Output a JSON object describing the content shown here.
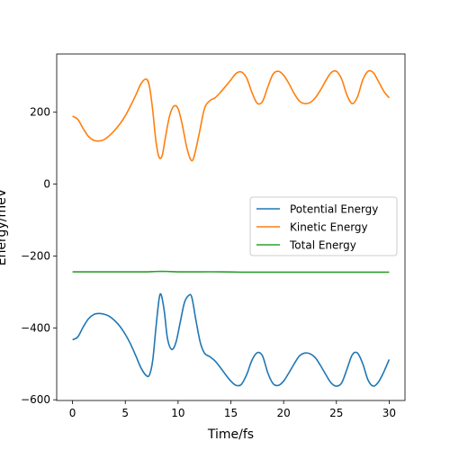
{
  "chart_data": {
    "type": "line",
    "title": "",
    "xlabel": "Time/fs",
    "ylabel": "Energy/meV",
    "xlim": [
      -1.5,
      31.5
    ],
    "ylim": [
      -602,
      362
    ],
    "xticks": [
      0,
      5,
      10,
      15,
      20,
      25,
      30
    ],
    "yticks": [
      -600,
      -400,
      -200,
      0,
      200
    ],
    "grid": false,
    "legend_position": "center-right",
    "series": [
      {
        "name": "Potential Energy",
        "color": "#1f77b4",
        "points": [
          [
            0,
            -433
          ],
          [
            0.5,
            -425
          ],
          [
            1,
            -398
          ],
          [
            1.5,
            -375
          ],
          [
            2,
            -363
          ],
          [
            2.5,
            -360
          ],
          [
            3,
            -362
          ],
          [
            3.5,
            -368
          ],
          [
            4,
            -380
          ],
          [
            4.5,
            -396
          ],
          [
            5,
            -418
          ],
          [
            5.5,
            -445
          ],
          [
            6,
            -478
          ],
          [
            6.5,
            -512
          ],
          [
            7,
            -533
          ],
          [
            7.3,
            -530
          ],
          [
            7.6,
            -490
          ],
          [
            7.9,
            -400
          ],
          [
            8.2,
            -320
          ],
          [
            8.4,
            -308
          ],
          [
            8.7,
            -355
          ],
          [
            9,
            -430
          ],
          [
            9.4,
            -460
          ],
          [
            9.8,
            -440
          ],
          [
            10.2,
            -385
          ],
          [
            10.6,
            -330
          ],
          [
            11,
            -310
          ],
          [
            11.3,
            -315
          ],
          [
            11.7,
            -380
          ],
          [
            12.1,
            -440
          ],
          [
            12.5,
            -470
          ],
          [
            13,
            -480
          ],
          [
            13.5,
            -492
          ],
          [
            14,
            -510
          ],
          [
            14.5,
            -530
          ],
          [
            15,
            -548
          ],
          [
            15.5,
            -560
          ],
          [
            16,
            -557
          ],
          [
            16.5,
            -530
          ],
          [
            17,
            -490
          ],
          [
            17.5,
            -469
          ],
          [
            18,
            -478
          ],
          [
            18.5,
            -525
          ],
          [
            19,
            -555
          ],
          [
            19.5,
            -560
          ],
          [
            20,
            -548
          ],
          [
            20.5,
            -525
          ],
          [
            21,
            -500
          ],
          [
            21.5,
            -478
          ],
          [
            22,
            -470
          ],
          [
            22.5,
            -472
          ],
          [
            23,
            -483
          ],
          [
            23.5,
            -505
          ],
          [
            24,
            -530
          ],
          [
            24.5,
            -553
          ],
          [
            25,
            -562
          ],
          [
            25.5,
            -553
          ],
          [
            26,
            -515
          ],
          [
            26.5,
            -475
          ],
          [
            27,
            -470
          ],
          [
            27.5,
            -500
          ],
          [
            28,
            -545
          ],
          [
            28.5,
            -562
          ],
          [
            29,
            -550
          ],
          [
            29.5,
            -522
          ],
          [
            30,
            -488
          ]
        ]
      },
      {
        "name": "Kinetic Energy",
        "color": "#ff7f0e",
        "points": [
          [
            0,
            189
          ],
          [
            0.5,
            180
          ],
          [
            1,
            155
          ],
          [
            1.5,
            133
          ],
          [
            2,
            122
          ],
          [
            2.5,
            120
          ],
          [
            3,
            124
          ],
          [
            3.5,
            135
          ],
          [
            4,
            150
          ],
          [
            4.5,
            168
          ],
          [
            5,
            190
          ],
          [
            5.5,
            218
          ],
          [
            6,
            248
          ],
          [
            6.5,
            280
          ],
          [
            7,
            292
          ],
          [
            7.3,
            270
          ],
          [
            7.6,
            205
          ],
          [
            7.9,
            120
          ],
          [
            8.2,
            75
          ],
          [
            8.5,
            80
          ],
          [
            8.8,
            130
          ],
          [
            9.2,
            190
          ],
          [
            9.6,
            217
          ],
          [
            10,
            210
          ],
          [
            10.4,
            165
          ],
          [
            10.8,
            105
          ],
          [
            11.2,
            68
          ],
          [
            11.5,
            75
          ],
          [
            12,
            140
          ],
          [
            12.5,
            210
          ],
          [
            13,
            232
          ],
          [
            13.5,
            240
          ],
          [
            14,
            255
          ],
          [
            14.5,
            272
          ],
          [
            15,
            290
          ],
          [
            15.5,
            308
          ],
          [
            16,
            312
          ],
          [
            16.5,
            295
          ],
          [
            17,
            255
          ],
          [
            17.5,
            225
          ],
          [
            18,
            230
          ],
          [
            18.5,
            270
          ],
          [
            19,
            306
          ],
          [
            19.5,
            314
          ],
          [
            20,
            303
          ],
          [
            20.5,
            280
          ],
          [
            21,
            252
          ],
          [
            21.5,
            231
          ],
          [
            22,
            224
          ],
          [
            22.5,
            227
          ],
          [
            23,
            240
          ],
          [
            23.5,
            262
          ],
          [
            24,
            288
          ],
          [
            24.5,
            310
          ],
          [
            25,
            314
          ],
          [
            25.5,
            292
          ],
          [
            26,
            248
          ],
          [
            26.5,
            224
          ],
          [
            27,
            243
          ],
          [
            27.5,
            290
          ],
          [
            28,
            314
          ],
          [
            28.5,
            310
          ],
          [
            29,
            285
          ],
          [
            29.5,
            258
          ],
          [
            30,
            240
          ]
        ]
      },
      {
        "name": "Total Energy",
        "color": "#2ca02c",
        "points": [
          [
            0,
            -244
          ],
          [
            2,
            -244
          ],
          [
            4,
            -244
          ],
          [
            6,
            -244
          ],
          [
            7,
            -244
          ],
          [
            8,
            -243
          ],
          [
            9,
            -243
          ],
          [
            10,
            -244
          ],
          [
            12,
            -244
          ],
          [
            14,
            -244
          ],
          [
            16,
            -245
          ],
          [
            18,
            -245
          ],
          [
            20,
            -245
          ],
          [
            22,
            -245
          ],
          [
            24,
            -245
          ],
          [
            26,
            -245
          ],
          [
            28,
            -245
          ],
          [
            30,
            -245
          ]
        ]
      }
    ]
  }
}
